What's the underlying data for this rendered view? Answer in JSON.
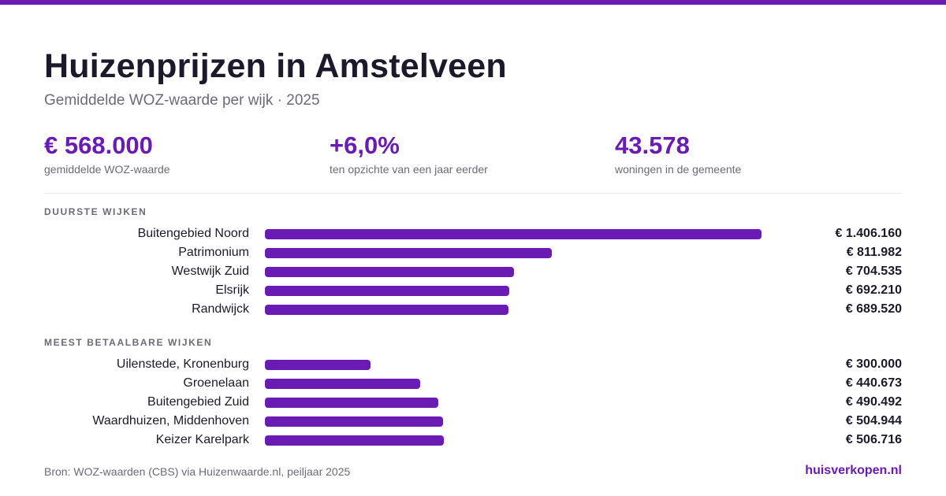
{
  "colors": {
    "accent": "#6a1bb3",
    "text": "#1c1a2a",
    "muted": "#6b6b78"
  },
  "header": {
    "title": "Huizenprijzen in Amstelveen",
    "subtitle": "Gemiddelde WOZ-waarde per wijk · 2025"
  },
  "stats": [
    {
      "value": "€ 568.000",
      "label": "gemiddelde WOZ-waarde"
    },
    {
      "value": "+6,0%",
      "label": "ten opzichte van een jaar eerder"
    },
    {
      "value": "43.578",
      "label": "woningen in de gemeente"
    }
  ],
  "chart_data": {
    "type": "bar",
    "orientation": "horizontal",
    "xlim": [
      0,
      1406160
    ],
    "sections": [
      {
        "label": "DUURSTE WIJKEN",
        "categories": [
          "Buitengebied Noord",
          "Patrimonium",
          "Westwijk Zuid",
          "Elsrijk",
          "Randwijck"
        ],
        "values": [
          1406160,
          811982,
          704535,
          692210,
          689520
        ],
        "value_labels": [
          "€ 1.406.160",
          "€ 811.982",
          "€ 704.535",
          "€ 692.210",
          "€ 689.520"
        ]
      },
      {
        "label": "MEEST BETAALBARE WIJKEN",
        "categories": [
          "Uilenstede, Kronenburg",
          "Groenelaan",
          "Buitengebied Zuid",
          "Waardhuizen, Middenhoven",
          "Keizer Karelpark"
        ],
        "values": [
          300000,
          440673,
          490492,
          504944,
          506716
        ],
        "value_labels": [
          "€ 300.000",
          "€ 440.673",
          "€ 490.492",
          "€ 504.944",
          "€ 506.716"
        ]
      }
    ]
  },
  "footer": {
    "source": "Bron: WOZ-waarden (CBS) via Huizenwaarde.nl, peiljaar 2025",
    "brand": "huisverkopen.nl"
  }
}
